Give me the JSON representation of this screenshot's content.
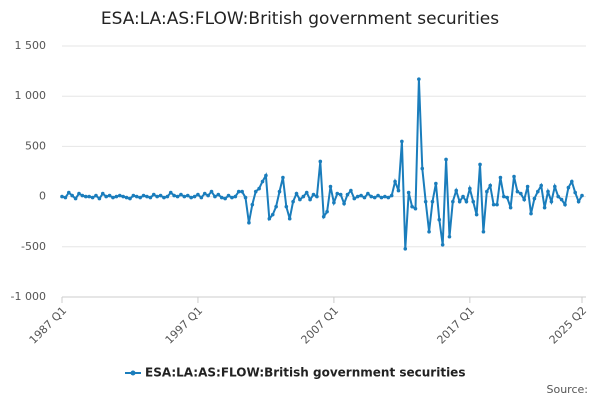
{
  "chart_data": {
    "type": "line",
    "title": "ESA:LA:AS:FLOW:British government securities",
    "source": "Source:",
    "categories": [
      "1987 Q1",
      null,
      null,
      null,
      null,
      null,
      null,
      null,
      null,
      null,
      null,
      null,
      null,
      null,
      null,
      null,
      null,
      null,
      null,
      null,
      null,
      null,
      null,
      null,
      null,
      null,
      null,
      null,
      null,
      null,
      null,
      null,
      null,
      null,
      null,
      null,
      null,
      null,
      null,
      null,
      "1997 Q1",
      null,
      null,
      null,
      null,
      null,
      null,
      null,
      null,
      null,
      null,
      null,
      null,
      null,
      null,
      null,
      null,
      null,
      null,
      null,
      null,
      null,
      null,
      null,
      null,
      null,
      null,
      null,
      null,
      null,
      null,
      null,
      null,
      null,
      null,
      null,
      null,
      null,
      null,
      null,
      "2007 Q1",
      null,
      null,
      null,
      null,
      null,
      null,
      null,
      null,
      null,
      null,
      null,
      null,
      null,
      null,
      null,
      null,
      null,
      null,
      null,
      null,
      null,
      null,
      null,
      null,
      null,
      null,
      null,
      null,
      null,
      null,
      null,
      null,
      null,
      null,
      null,
      null,
      null,
      null,
      null,
      "2017 Q1",
      null,
      null,
      null,
      null,
      null,
      null,
      null,
      null,
      null,
      null,
      null,
      null,
      null,
      null,
      null,
      null,
      null,
      null,
      null,
      null,
      null,
      null,
      null,
      null,
      null,
      null,
      null,
      null,
      null,
      null,
      null,
      null,
      "2025 Q2"
    ],
    "series": [
      {
        "name": "ESA:LA:AS:FLOW:British government securities",
        "color": "#1a7dbc",
        "values": [
          0,
          -10,
          40,
          10,
          -20,
          30,
          10,
          0,
          0,
          -10,
          10,
          -20,
          30,
          0,
          10,
          -10,
          0,
          10,
          0,
          -10,
          -20,
          10,
          0,
          -10,
          10,
          0,
          -10,
          20,
          0,
          10,
          -10,
          0,
          40,
          10,
          0,
          20,
          0,
          10,
          -10,
          0,
          20,
          -10,
          30,
          10,
          50,
          0,
          20,
          -10,
          -20,
          10,
          -10,
          0,
          50,
          50,
          -10,
          -260,
          -80,
          50,
          80,
          150,
          210,
          -220,
          -180,
          -100,
          50,
          190,
          -100,
          -220,
          -50,
          30,
          -30,
          0,
          40,
          -30,
          20,
          0,
          350,
          -200,
          -150,
          100,
          -60,
          30,
          20,
          -70,
          20,
          60,
          -20,
          0,
          10,
          -10,
          30,
          0,
          -10,
          10,
          -10,
          0,
          -10,
          10,
          150,
          60,
          550,
          -520,
          40,
          -100,
          -120,
          1170,
          280,
          -50,
          -350,
          -50,
          130,
          -230,
          -480,
          370,
          -400,
          -50,
          60,
          -50,
          0,
          -50,
          80,
          -50,
          -180,
          320,
          -350,
          50,
          110,
          -80,
          -80,
          190,
          0,
          -10,
          -110,
          200,
          50,
          30,
          -30,
          100,
          -170,
          -20,
          50,
          110,
          -110,
          50,
          -50,
          100,
          0,
          -30,
          -80,
          90,
          150,
          40,
          -50,
          10
        ]
      }
    ],
    "ylim": [
      -1000,
      1500
    ],
    "yticks": [
      {
        "value": -1000,
        "label": "-1 000"
      },
      -500,
      0,
      500,
      {
        "value": 1000,
        "label": "1 000"
      },
      {
        "value": 1500,
        "label": "1 500"
      }
    ],
    "grid": true
  }
}
